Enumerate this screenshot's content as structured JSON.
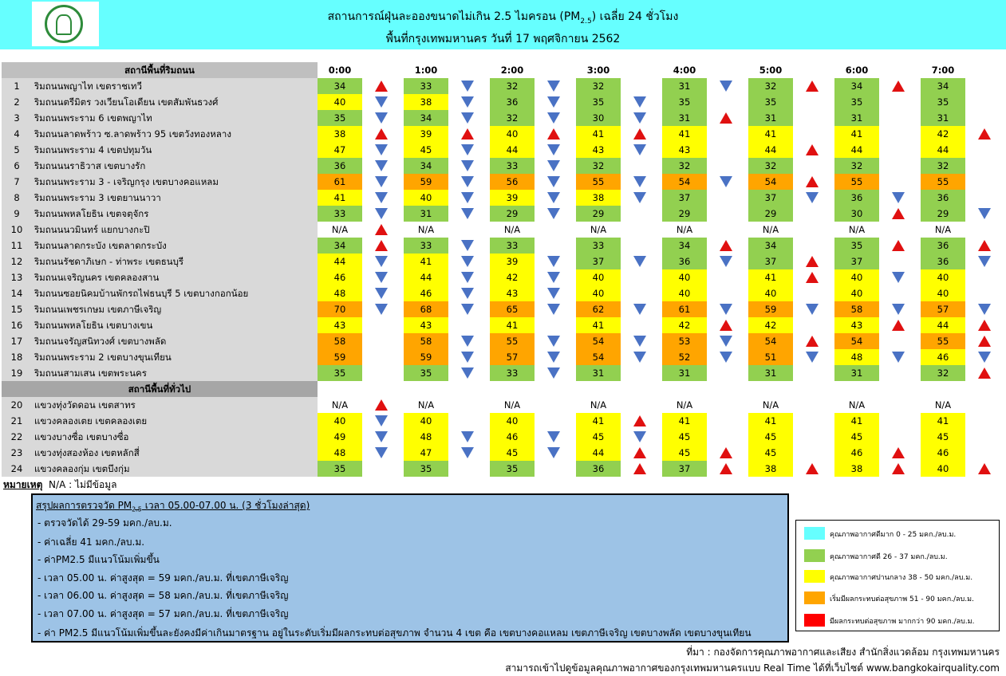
{
  "header": {
    "title_pre": "สถานการณ์ฝุ่นละอองขนาดไม่เกิน 2.5 ไมครอน (PM",
    "title_sub": "2.5",
    "title_post": ") เฉลี่ย 24 ชั่วโมง",
    "subtitle": "พื้นที่กรุงเทพมหานคร วันที่ 17 พฤศจิกายน 2562"
  },
  "colors": {
    "very_good": "#66ffff",
    "good": "#92d050",
    "moderate": "#ffff00",
    "unhealthy_start": "#ffa500",
    "unhealthy": "#ff0000",
    "up_arrow": "#e01010",
    "down_arrow": "#4a72c4"
  },
  "table": {
    "section1_title": "สถานีพื้นที่ริมถนน",
    "section2_title": "สถานีพื้นที่ทั่วไป",
    "times": [
      "0:00",
      "1:00",
      "2:00",
      "3:00",
      "4:00",
      "5:00",
      "6:00",
      "7:00"
    ],
    "na_text": "N/A",
    "rows": [
      {
        "no": "1",
        "name": "ริมถนนพญาไท เขตราชเทวี",
        "v": [
          "34",
          "33",
          "32",
          "32",
          "31",
          "32",
          "34",
          "34"
        ],
        "a": [
          "up",
          "down",
          "down",
          "",
          "down",
          "up",
          "up",
          ""
        ]
      },
      {
        "no": "2",
        "name": "ริมถนนตรีมิตร วงเวียนโอเดียน เขตสัมพันธวงศ์",
        "v": [
          "40",
          "38",
          "36",
          "35",
          "35",
          "35",
          "35",
          "35"
        ],
        "a": [
          "down",
          "down",
          "down",
          "down",
          "",
          "",
          "",
          ""
        ]
      },
      {
        "no": "3",
        "name": "ริมถนนพระราม 6 เขตพญาไท",
        "v": [
          "35",
          "34",
          "32",
          "30",
          "31",
          "31",
          "31",
          "31"
        ],
        "a": [
          "down",
          "down",
          "down",
          "down",
          "up",
          "",
          "",
          ""
        ]
      },
      {
        "no": "4",
        "name": "ริมถนนลาดพร้าว ซ.ลาดพร้าว 95 เขตวังทองหลาง",
        "v": [
          "38",
          "39",
          "40",
          "41",
          "41",
          "41",
          "41",
          "42"
        ],
        "a": [
          "up",
          "up",
          "up",
          "up",
          "",
          "",
          "",
          "up"
        ]
      },
      {
        "no": "5",
        "name": "ริมถนนพระราม 4 เขตปทุมวัน",
        "v": [
          "47",
          "45",
          "44",
          "43",
          "43",
          "44",
          "44",
          "44"
        ],
        "a": [
          "down",
          "down",
          "down",
          "down",
          "",
          "up",
          "",
          ""
        ]
      },
      {
        "no": "6",
        "name": "ริมถนนนราธิวาส เขตบางรัก",
        "v": [
          "36",
          "34",
          "33",
          "32",
          "32",
          "32",
          "32",
          "32"
        ],
        "a": [
          "down",
          "down",
          "down",
          "",
          "",
          "",
          "",
          ""
        ]
      },
      {
        "no": "7",
        "name": "ริมถนนพระราม 3 - เจริญกรุง เขตบางคอแหลม",
        "v": [
          "61",
          "59",
          "56",
          "55",
          "54",
          "54",
          "55",
          "55"
        ],
        "a": [
          "down",
          "down",
          "down",
          "down",
          "down",
          "up",
          "",
          ""
        ]
      },
      {
        "no": "8",
        "name": "ริมถนนพระราม 3 เขตยานนาวา",
        "v": [
          "41",
          "40",
          "39",
          "38",
          "37",
          "37",
          "36",
          "36"
        ],
        "a": [
          "down",
          "down",
          "down",
          "down",
          "",
          "down",
          "down",
          ""
        ]
      },
      {
        "no": "9",
        "name": "ริมถนนพหลโยธิน เขตจตุจักร",
        "v": [
          "33",
          "31",
          "29",
          "29",
          "29",
          "29",
          "30",
          "29"
        ],
        "a": [
          "down",
          "down",
          "down",
          "",
          "",
          "",
          "up",
          "down"
        ]
      },
      {
        "no": "10",
        "name": "ริมถนนนวมินทร์ แยกบางกะปิ",
        "v": [
          "N/A",
          "N/A",
          "N/A",
          "N/A",
          "N/A",
          "N/A",
          "N/A",
          "N/A"
        ],
        "a": [
          "up",
          "",
          "",
          "",
          "",
          "",
          "",
          ""
        ]
      },
      {
        "no": "11",
        "name": "ริมถนนลาดกระบัง เขตลาดกระบัง",
        "v": [
          "34",
          "33",
          "33",
          "33",
          "34",
          "34",
          "35",
          "36"
        ],
        "a": [
          "up",
          "down",
          "",
          "",
          "up",
          "",
          "up",
          "up"
        ]
      },
      {
        "no": "12",
        "name": "ริมถนนรัชดาภิเษก - ท่าพระ เขตธนบุรี",
        "v": [
          "44",
          "41",
          "39",
          "37",
          "36",
          "37",
          "37",
          "36"
        ],
        "a": [
          "down",
          "down",
          "down",
          "down",
          "down",
          "up",
          "",
          "down"
        ]
      },
      {
        "no": "13",
        "name": "ริมถนนเจริญนคร เขตคลองสาน",
        "v": [
          "46",
          "44",
          "42",
          "40",
          "40",
          "41",
          "40",
          "40"
        ],
        "a": [
          "down",
          "down",
          "down",
          "",
          "",
          "up",
          "down",
          ""
        ]
      },
      {
        "no": "14",
        "name": "ริมถนนซอยนิคมบ้านพักรถไฟธนบุรี 5 เขตบางกอกน้อย",
        "v": [
          "48",
          "46",
          "43",
          "40",
          "40",
          "40",
          "40",
          "40"
        ],
        "a": [
          "down",
          "down",
          "down",
          "",
          "",
          "",
          "",
          ""
        ]
      },
      {
        "no": "15",
        "name": "ริมถนนเพชรเกษม เขตภาษีเจริญ",
        "v": [
          "70",
          "68",
          "65",
          "62",
          "61",
          "59",
          "58",
          "57"
        ],
        "a": [
          "down",
          "down",
          "down",
          "down",
          "down",
          "down",
          "down",
          "down"
        ]
      },
      {
        "no": "16",
        "name": "ริมถนนพหลโยธิน เขตบางเขน",
        "v": [
          "43",
          "43",
          "41",
          "41",
          "42",
          "42",
          "43",
          "44"
        ],
        "a": [
          "",
          "",
          "",
          "",
          "up",
          "",
          "up",
          "up"
        ]
      },
      {
        "no": "17",
        "name": "ริมถนนจรัญสนิทวงศ์ เขตบางพลัด",
        "v": [
          "58",
          "58",
          "55",
          "54",
          "53",
          "54",
          "54",
          "55"
        ],
        "a": [
          "",
          "down",
          "down",
          "down",
          "down",
          "up",
          "",
          "up"
        ]
      },
      {
        "no": "18",
        "name": "ริมถนนพระราม 2 เขตบางขุนเทียน",
        "v": [
          "59",
          "59",
          "57",
          "54",
          "52",
          "51",
          "48",
          "46"
        ],
        "a": [
          "",
          "down",
          "down",
          "down",
          "down",
          "down",
          "down",
          "down"
        ]
      },
      {
        "no": "19",
        "name": "ริมถนนสามเสน เขตพระนคร",
        "v": [
          "35",
          "35",
          "33",
          "31",
          "31",
          "31",
          "31",
          "32"
        ],
        "a": [
          "",
          "down",
          "down",
          "",
          "",
          "",
          "",
          "up"
        ]
      },
      {
        "no": "20",
        "name": "แขวงทุ่งวัดดอน เขตสาทร",
        "v": [
          "N/A",
          "N/A",
          "N/A",
          "N/A",
          "N/A",
          "N/A",
          "N/A",
          "N/A"
        ],
        "a": [
          "up",
          "",
          "",
          "",
          "",
          "",
          "",
          ""
        ]
      },
      {
        "no": "21",
        "name": "แขวงคลองเตย เขตคลองเตย",
        "v": [
          "40",
          "40",
          "40",
          "41",
          "41",
          "41",
          "41",
          "41"
        ],
        "a": [
          "down",
          "",
          "",
          "up",
          "",
          "",
          "",
          ""
        ]
      },
      {
        "no": "22",
        "name": "แขวงบางซื่อ เขตบางซื่อ",
        "v": [
          "49",
          "48",
          "46",
          "45",
          "45",
          "45",
          "45",
          "45"
        ],
        "a": [
          "down",
          "down",
          "down",
          "down",
          "",
          "",
          "",
          ""
        ]
      },
      {
        "no": "23",
        "name": "แขวงทุ่งสองห้อง เขตหลักสี่",
        "v": [
          "48",
          "47",
          "45",
          "44",
          "45",
          "45",
          "46",
          "46"
        ],
        "a": [
          "down",
          "down",
          "down",
          "up",
          "up",
          "",
          "up",
          ""
        ]
      },
      {
        "no": "24",
        "name": "แขวงคลองกุ่ม เขตบึงกุ่ม",
        "v": [
          "35",
          "35",
          "35",
          "36",
          "37",
          "38",
          "38",
          "40"
        ],
        "a": [
          "",
          "",
          "",
          "up",
          "up",
          "up",
          "up",
          "up"
        ]
      }
    ]
  },
  "note": {
    "label": "หมายเหตุ",
    "text": "N/A : ไม่มีข้อมูล"
  },
  "summary": {
    "title_pre": "สรุปผลการตรวจวัด PM",
    "title_sub": "2.5",
    "title_post": " เวลา 05.00-07.00 น. (3 ชั่วโมงล่าสุด)",
    "lines": [
      "- ตรวจวัดได้ 29-59 มคก./ลบ.ม.",
      "- ค่าเฉลี่ย 41 มคก./ลบ.ม.",
      "- ค่าPM2.5 มีแนวโน้มเพิ่มขึ้น",
      "- เวลา 05.00 น. ค่าสูงสุด = 59 มคก./ลบ.ม. ที่เขตภาษีเจริญ",
      "- เวลา 06.00 น. ค่าสูงสุด = 58 มคก./ลบ.ม. ที่เขตภาษีเจริญ",
      "- เวลา 07.00 น. ค่าสูงสุด = 57 มคก./ลบ.ม. ที่เขตภาษีเจริญ",
      "- ค่า PM2.5 มีแนวโน้มเพิ่มขึ้นละยังคงมีค่าเกินมาตรฐาน อยู่ในระดับเริ่มมีผลกระทบต่อสุขภาพ จำนวน 4 เขต คือ เขตบางคอแหลม เขตภาษีเจริญ เขตบางพลัด เขตบางขุนเทียน"
    ]
  },
  "legend": [
    {
      "label": "คุณภาพอากาศดีมาก 0 - 25 มคก./ลบ.ม.",
      "color": "#66ffff"
    },
    {
      "label": "คุณภาพอากาศดี 26 - 37 มคก./ลบ.ม.",
      "color": "#92d050"
    },
    {
      "label": "คุณภาพอากาศปานกลาง 38 - 50 มคก./ลบ.ม.",
      "color": "#ffff00"
    },
    {
      "label": "เริ่มมีผลกระทบต่อสุขภาพ 51 - 90 มคก./ลบ.ม.",
      "color": "#ffa500"
    },
    {
      "label": "มีผลกระทบต่อสุขภาพ มากกว่า 90 มคก./ลบ.ม.",
      "color": "#ff0000"
    }
  ],
  "footer": {
    "source": "ที่มา : กองจัดการคุณภาพอากาศและเสียง สำนักสิ่งแวดล้อม กรุงเทพมหานคร",
    "realtime": "สามารถเข้าไปดูข้อมูลคุณภาพอากาศของกรุงเทพมหานครแบบ Real Time ได้ที่เว็บไซต์ www.bangkokairquality.com"
  }
}
